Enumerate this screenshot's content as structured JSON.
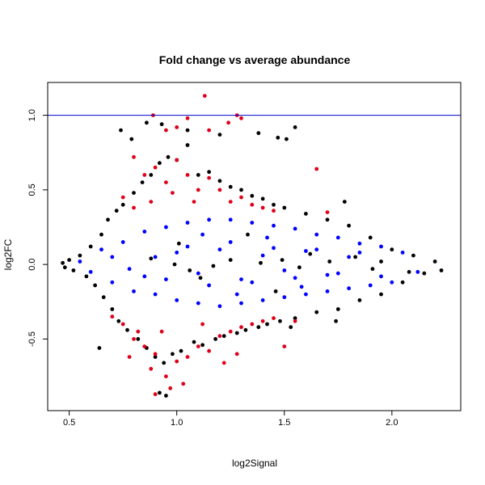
{
  "chart_data": {
    "type": "scatter",
    "title": "Fold change vs average abundance",
    "xlabel": "log2Signal",
    "ylabel": "log2FC",
    "xlim": [
      0.4,
      2.32
    ],
    "ylim": [
      -0.98,
      1.22
    ],
    "x_ticks": [
      "0.5",
      "1.0",
      "1.5",
      "2.0"
    ],
    "y_ticks": [
      "-0.5",
      "0.0",
      "0.5",
      "1.0"
    ],
    "x_tick_values": [
      0.5,
      1.0,
      1.5,
      2.0
    ],
    "y_tick_values": [
      -0.5,
      0.0,
      0.5,
      1.0
    ],
    "reference_line": {
      "y": 1.0,
      "color": "#0000cc"
    },
    "grid": false,
    "legend": "none",
    "series": [
      {
        "color": "#000000",
        "points": [
          [
            0.47,
            0.01
          ],
          [
            0.48,
            -0.02
          ],
          [
            0.5,
            0.03
          ],
          [
            0.52,
            -0.04
          ],
          [
            0.55,
            0.06
          ],
          [
            0.58,
            -0.08
          ],
          [
            0.6,
            0.12
          ],
          [
            0.62,
            -0.14
          ],
          [
            0.65,
            0.2
          ],
          [
            0.66,
            -0.22
          ],
          [
            0.68,
            0.3
          ],
          [
            0.7,
            -0.3
          ],
          [
            0.72,
            0.36
          ],
          [
            0.73,
            -0.38
          ],
          [
            0.75,
            0.4
          ],
          [
            0.77,
            -0.44
          ],
          [
            0.8,
            0.48
          ],
          [
            0.82,
            -0.5
          ],
          [
            0.84,
            0.55
          ],
          [
            0.86,
            -0.56
          ],
          [
            0.88,
            0.6
          ],
          [
            0.9,
            -0.62
          ],
          [
            0.92,
            0.68
          ],
          [
            0.94,
            -0.66
          ],
          [
            0.96,
            0.72
          ],
          [
            0.98,
            -0.6
          ],
          [
            1.0,
            0.7
          ],
          [
            1.02,
            -0.58
          ],
          [
            1.05,
            0.8
          ],
          [
            1.08,
            -0.52
          ],
          [
            1.1,
            0.6
          ],
          [
            1.12,
            -0.54
          ],
          [
            1.15,
            0.62
          ],
          [
            1.18,
            -0.5
          ],
          [
            1.2,
            0.56
          ],
          [
            1.22,
            -0.48
          ],
          [
            1.25,
            0.52
          ],
          [
            1.28,
            -0.46
          ],
          [
            1.3,
            0.5
          ],
          [
            1.32,
            -0.44
          ],
          [
            1.35,
            0.46
          ],
          [
            1.38,
            -0.42
          ],
          [
            1.4,
            0.44
          ],
          [
            1.42,
            -0.4
          ],
          [
            1.45,
            0.4
          ],
          [
            1.48,
            -0.38
          ],
          [
            1.5,
            0.38
          ],
          [
            1.55,
            -0.36
          ],
          [
            1.6,
            0.34
          ],
          [
            1.65,
            -0.32
          ],
          [
            1.7,
            0.3
          ],
          [
            1.75,
            -0.3
          ],
          [
            1.8,
            0.26
          ],
          [
            1.85,
            -0.24
          ],
          [
            1.9,
            0.18
          ],
          [
            1.95,
            -0.2
          ],
          [
            2.0,
            0.1
          ],
          [
            2.05,
            -0.12
          ],
          [
            2.1,
            0.06
          ],
          [
            2.15,
            -0.06
          ],
          [
            2.2,
            0.02
          ],
          [
            2.23,
            -0.04
          ],
          [
            0.74,
            0.9
          ],
          [
            0.86,
            0.95
          ],
          [
            0.95,
            -0.88
          ],
          [
            0.92,
            -0.86
          ],
          [
            1.55,
            0.92
          ],
          [
            1.51,
            0.84
          ],
          [
            1.47,
            0.85
          ],
          [
            1.38,
            0.88
          ],
          [
            1.78,
            0.42
          ],
          [
            1.05,
            0.9
          ],
          [
            0.79,
            0.84
          ],
          [
            1.2,
            0.87
          ],
          [
            0.93,
            0.94
          ],
          [
            1.74,
            -0.38
          ],
          [
            1.53,
            -0.42
          ],
          [
            0.64,
            -0.56
          ],
          [
            1.01,
            0.14
          ],
          [
            1.11,
            -0.09
          ],
          [
            1.33,
            0.2
          ],
          [
            1.46,
            -0.18
          ],
          [
            1.62,
            0.07
          ],
          [
            1.91,
            -0.03
          ],
          [
            0.99,
            0.0
          ],
          [
            1.25,
            0.03
          ],
          [
            1.57,
            -0.02
          ],
          [
            1.83,
            0.05
          ],
          [
            2.08,
            -0.05
          ],
          [
            1.39,
            0.01
          ],
          [
            1.06,
            -0.04
          ],
          [
            1.71,
            0.02
          ],
          [
            0.88,
            0.04
          ],
          [
            1.17,
            -0.01
          ],
          [
            1.49,
            0.03
          ],
          [
            1.95,
            0.02
          ]
        ]
      },
      {
        "color": "#0000ff",
        "points": [
          [
            0.55,
            0.02
          ],
          [
            0.6,
            -0.05
          ],
          [
            0.65,
            0.1
          ],
          [
            0.7,
            -0.12
          ],
          [
            0.75,
            0.15
          ],
          [
            0.8,
            -0.18
          ],
          [
            0.85,
            0.22
          ],
          [
            0.9,
            -0.2
          ],
          [
            0.95,
            0.25
          ],
          [
            1.0,
            -0.24
          ],
          [
            1.05,
            0.28
          ],
          [
            1.1,
            -0.26
          ],
          [
            1.15,
            0.3
          ],
          [
            1.2,
            -0.28
          ],
          [
            1.25,
            0.3
          ],
          [
            1.3,
            -0.26
          ],
          [
            1.35,
            0.28
          ],
          [
            1.4,
            -0.24
          ],
          [
            1.45,
            0.26
          ],
          [
            1.5,
            -0.22
          ],
          [
            1.55,
            0.24
          ],
          [
            1.6,
            -0.2
          ],
          [
            1.65,
            0.2
          ],
          [
            1.7,
            -0.18
          ],
          [
            1.75,
            0.18
          ],
          [
            1.8,
            -0.16
          ],
          [
            1.85,
            0.14
          ],
          [
            1.9,
            -0.14
          ],
          [
            1.95,
            0.12
          ],
          [
            2.0,
            -0.12
          ],
          [
            2.05,
            0.08
          ],
          [
            2.12,
            -0.05
          ],
          [
            0.9,
            0.05
          ],
          [
            1.0,
            0.08
          ],
          [
            1.1,
            -0.06
          ],
          [
            1.2,
            0.1
          ],
          [
            1.3,
            -0.1
          ],
          [
            1.4,
            0.06
          ],
          [
            1.5,
            -0.04
          ],
          [
            1.6,
            0.09
          ],
          [
            1.7,
            -0.07
          ],
          [
            1.8,
            0.05
          ],
          [
            0.85,
            -0.08
          ],
          [
            0.95,
            -0.1
          ],
          [
            1.05,
            0.12
          ],
          [
            1.15,
            -0.14
          ],
          [
            1.25,
            0.15
          ],
          [
            1.35,
            -0.12
          ],
          [
            1.45,
            0.11
          ],
          [
            1.55,
            -0.09
          ],
          [
            1.65,
            0.1
          ],
          [
            1.75,
            -0.06
          ],
          [
            1.85,
            0.08
          ],
          [
            1.95,
            -0.08
          ],
          [
            0.7,
            0.05
          ],
          [
            0.78,
            -0.03
          ],
          [
            1.12,
            0.2
          ],
          [
            1.28,
            -0.2
          ],
          [
            1.42,
            0.18
          ],
          [
            1.58,
            -0.15
          ]
        ]
      },
      {
        "color": "#e0001a",
        "points": [
          [
            0.89,
            1.0
          ],
          [
            1.13,
            1.13
          ],
          [
            1.28,
            1.0
          ],
          [
            1.3,
            0.98
          ],
          [
            1.05,
            0.98
          ],
          [
            1.0,
            0.92
          ],
          [
            0.95,
            0.9
          ],
          [
            1.15,
            0.9
          ],
          [
            1.24,
            0.95
          ],
          [
            0.8,
            0.72
          ],
          [
            0.85,
            0.6
          ],
          [
            0.9,
            0.65
          ],
          [
            0.95,
            0.55
          ],
          [
            1.0,
            0.7
          ],
          [
            1.05,
            0.6
          ],
          [
            1.1,
            0.5
          ],
          [
            1.15,
            0.58
          ],
          [
            1.2,
            0.5
          ],
          [
            1.25,
            0.42
          ],
          [
            1.3,
            0.45
          ],
          [
            1.35,
            0.4
          ],
          [
            1.4,
            0.38
          ],
          [
            1.45,
            0.36
          ],
          [
            1.65,
            0.64
          ],
          [
            1.7,
            0.35
          ],
          [
            0.75,
            0.45
          ],
          [
            0.8,
            0.38
          ],
          [
            0.88,
            0.42
          ],
          [
            0.98,
            0.48
          ],
          [
            1.08,
            0.42
          ],
          [
            0.7,
            -0.35
          ],
          [
            0.75,
            -0.4
          ],
          [
            0.8,
            -0.5
          ],
          [
            0.85,
            -0.55
          ],
          [
            0.9,
            -0.6
          ],
          [
            0.95,
            -0.75
          ],
          [
            0.97,
            -0.83
          ],
          [
            0.9,
            -0.87
          ],
          [
            1.0,
            -0.65
          ],
          [
            1.05,
            -0.62
          ],
          [
            1.1,
            -0.55
          ],
          [
            1.15,
            -0.58
          ],
          [
            1.2,
            -0.48
          ],
          [
            1.25,
            -0.45
          ],
          [
            1.3,
            -0.42
          ],
          [
            1.35,
            -0.4
          ],
          [
            1.4,
            -0.38
          ],
          [
            1.45,
            -0.36
          ],
          [
            1.5,
            -0.55
          ],
          [
            1.55,
            -0.38
          ],
          [
            1.28,
            -0.6
          ],
          [
            0.82,
            -0.45
          ],
          [
            1.12,
            -0.4
          ],
          [
            0.93,
            -0.45
          ],
          [
            0.88,
            -0.7
          ],
          [
            1.03,
            -0.8
          ],
          [
            1.22,
            -0.66
          ],
          [
            0.78,
            -0.62
          ]
        ]
      }
    ]
  }
}
